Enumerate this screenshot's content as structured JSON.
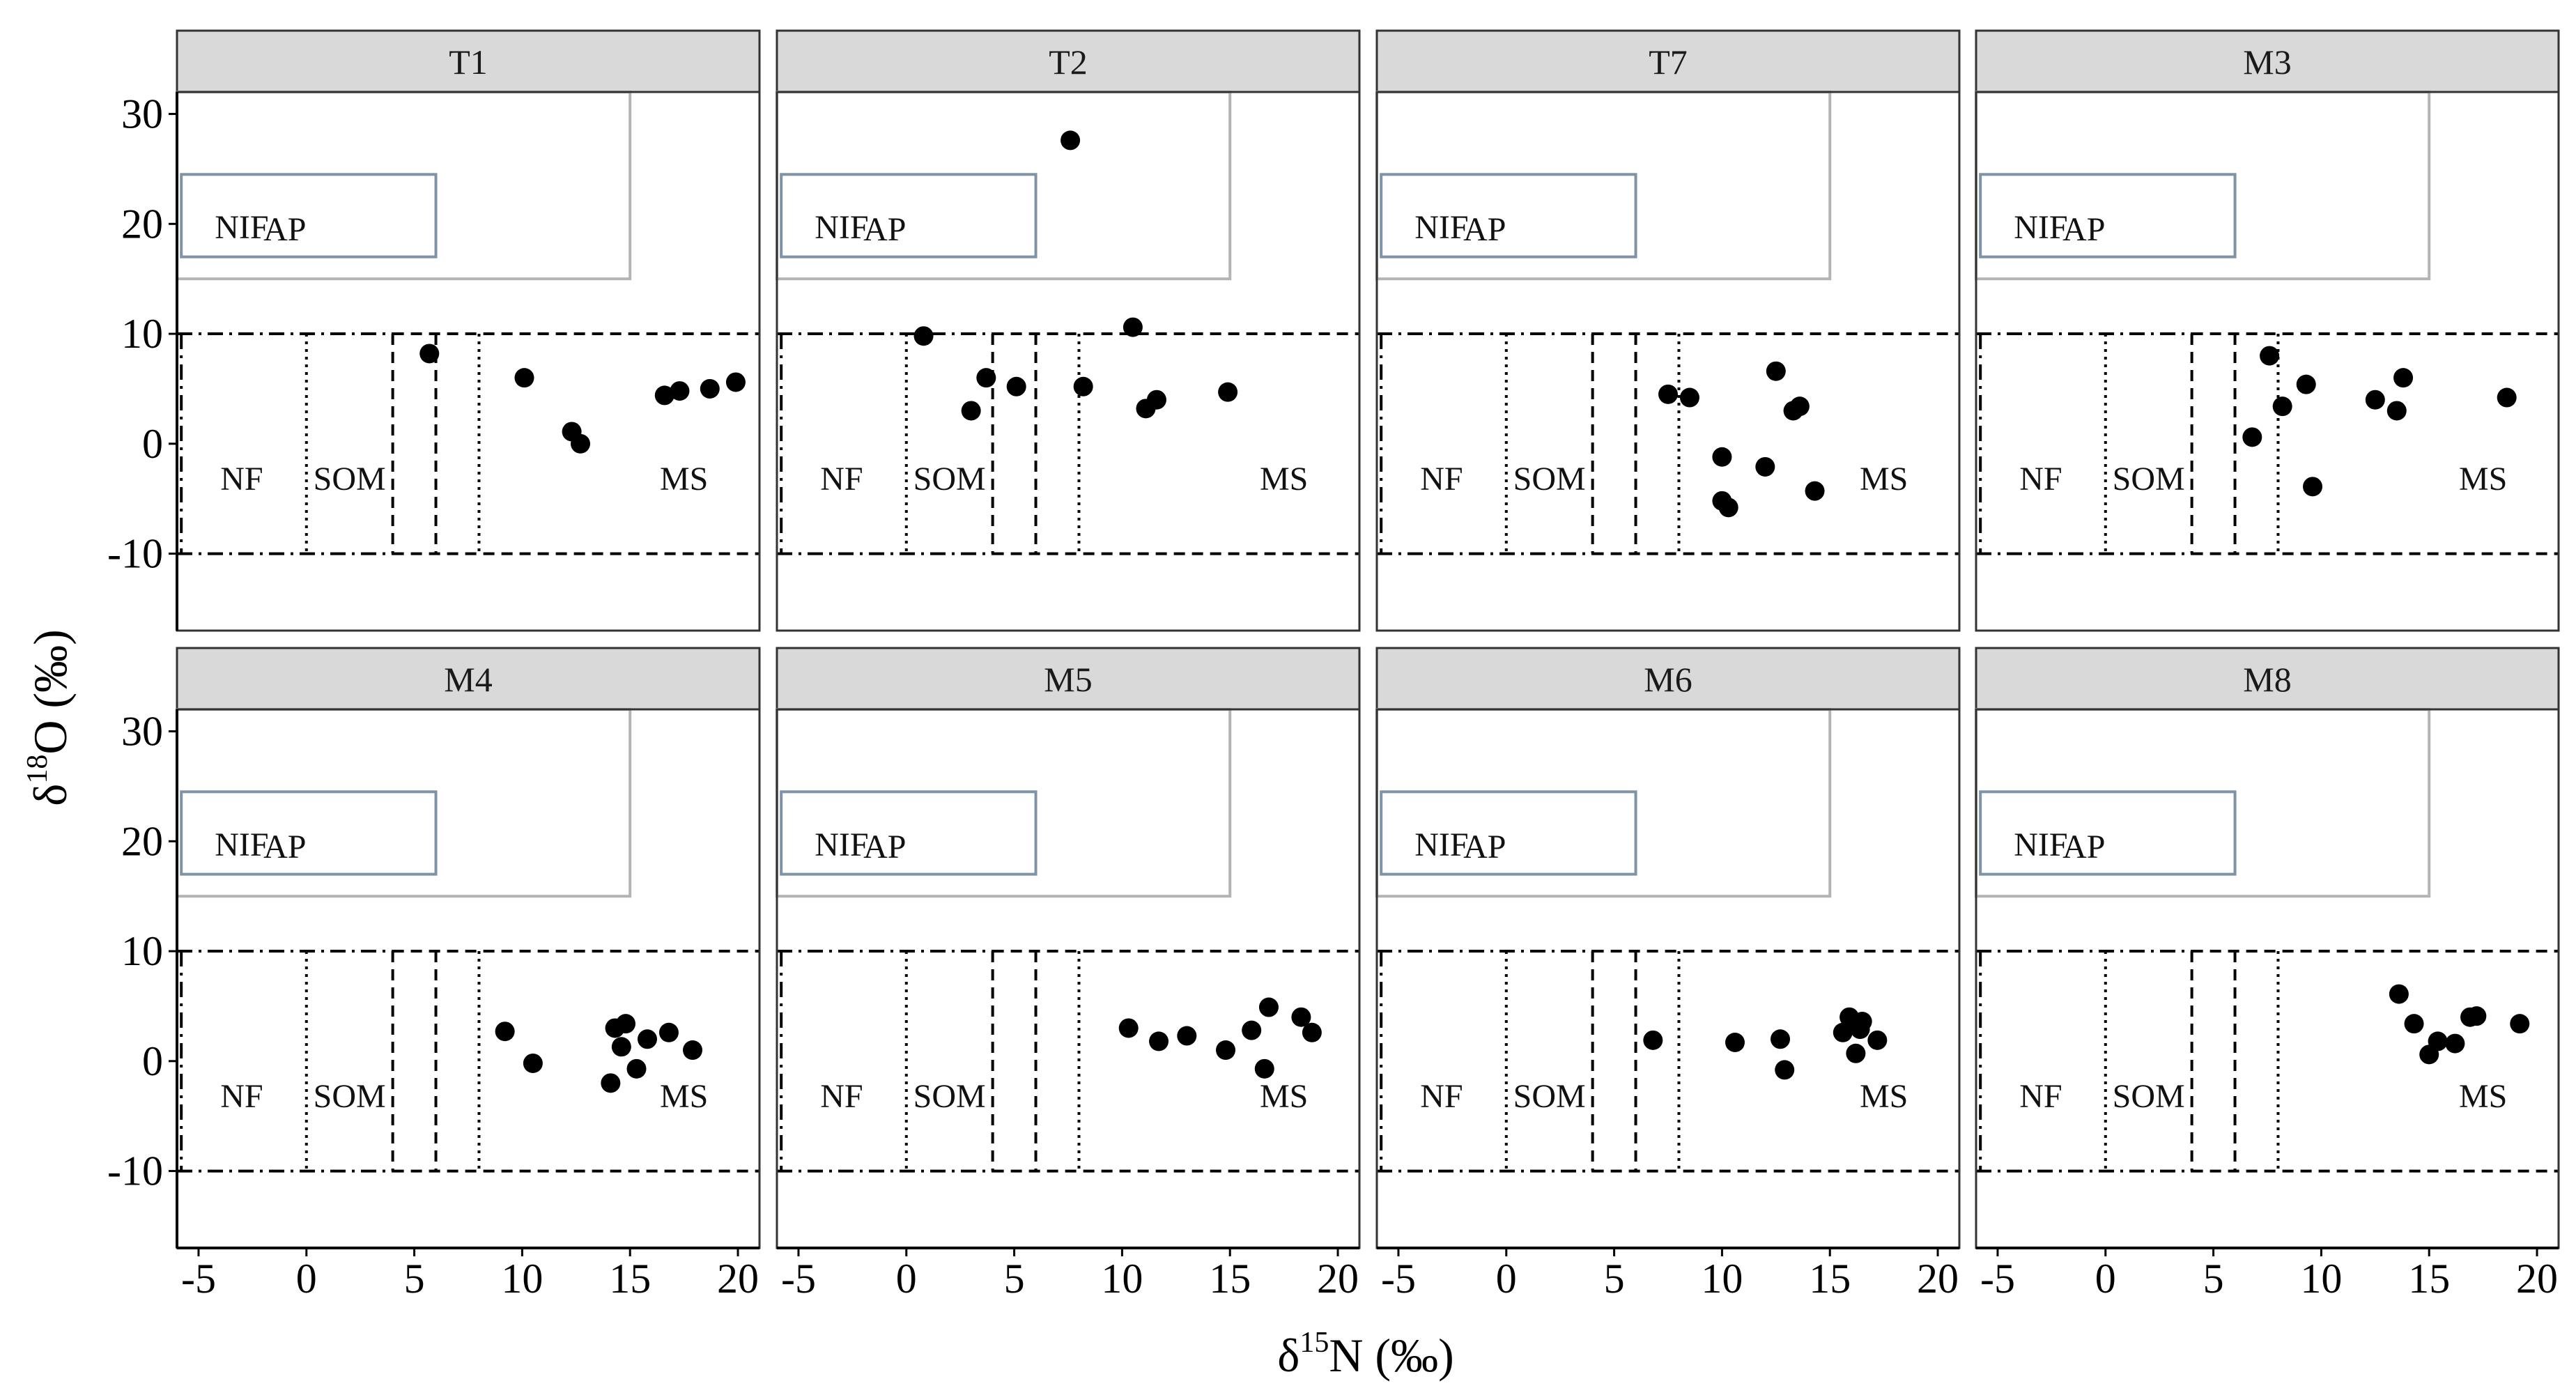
{
  "figure": {
    "ylabel": "δ18O (‰)",
    "xlabel": "δ15N (‰)"
  },
  "chart_data": [
    {
      "type": "scatter",
      "title": "T1",
      "xlim": [
        -6,
        21
      ],
      "ylim": [
        -17,
        32
      ],
      "xticks": [
        -5,
        0,
        5,
        10,
        15,
        20
      ],
      "yticks": [
        -10,
        0,
        10,
        20,
        30
      ],
      "points": [
        [
          5.7,
          8.2
        ],
        [
          10.1,
          6.0
        ],
        [
          12.3,
          1.1
        ],
        [
          12.7,
          0.0
        ],
        [
          16.6,
          4.4
        ],
        [
          17.3,
          4.8
        ],
        [
          18.7,
          5.0
        ],
        [
          19.9,
          5.6
        ]
      ]
    },
    {
      "type": "scatter",
      "title": "T2",
      "xlim": [
        -6,
        21
      ],
      "ylim": [
        -17,
        32
      ],
      "xticks": [
        -5,
        0,
        5,
        10,
        15,
        20
      ],
      "yticks": [
        -10,
        0,
        10,
        20,
        30
      ],
      "points": [
        [
          7.6,
          27.6
        ],
        [
          0.8,
          9.8
        ],
        [
          3.0,
          3.0
        ],
        [
          3.7,
          6.0
        ],
        [
          5.1,
          5.2
        ],
        [
          8.2,
          5.2
        ],
        [
          10.5,
          10.6
        ],
        [
          11.1,
          3.2
        ],
        [
          11.6,
          4.0
        ],
        [
          14.9,
          4.7
        ]
      ]
    },
    {
      "type": "scatter",
      "title": "T7",
      "xlim": [
        -6,
        21
      ],
      "ylim": [
        -17,
        32
      ],
      "xticks": [
        -5,
        0,
        5,
        10,
        15,
        20
      ],
      "yticks": [
        -10,
        0,
        10,
        20,
        30
      ],
      "points": [
        [
          7.5,
          4.5
        ],
        [
          8.5,
          4.2
        ],
        [
          10.0,
          -1.2
        ],
        [
          10.0,
          -5.2
        ],
        [
          10.3,
          -5.8
        ],
        [
          12.0,
          -2.1
        ],
        [
          12.5,
          6.6
        ],
        [
          13.3,
          3.0
        ],
        [
          13.6,
          3.4
        ],
        [
          14.3,
          -4.3
        ]
      ]
    },
    {
      "type": "scatter",
      "title": "M3",
      "xlim": [
        -6,
        21
      ],
      "ylim": [
        -17,
        32
      ],
      "xticks": [
        -5,
        0,
        5,
        10,
        15,
        20
      ],
      "yticks": [
        -10,
        0,
        10,
        20,
        30
      ],
      "points": [
        [
          6.8,
          0.6
        ],
        [
          7.6,
          8.0
        ],
        [
          8.2,
          3.4
        ],
        [
          9.3,
          5.4
        ],
        [
          9.6,
          -3.9
        ],
        [
          12.5,
          4.0
        ],
        [
          13.5,
          3.0
        ],
        [
          13.8,
          6.0
        ],
        [
          18.6,
          4.2
        ]
      ]
    },
    {
      "type": "scatter",
      "title": "M4",
      "xlim": [
        -6,
        21
      ],
      "ylim": [
        -17,
        32
      ],
      "xticks": [
        -5,
        0,
        5,
        10,
        15,
        20
      ],
      "yticks": [
        -10,
        0,
        10,
        20,
        30
      ],
      "points": [
        [
          9.2,
          2.7
        ],
        [
          10.5,
          -0.2
        ],
        [
          14.1,
          -2.0
        ],
        [
          14.3,
          3.0
        ],
        [
          14.6,
          1.3
        ],
        [
          14.8,
          3.4
        ],
        [
          15.3,
          -0.7
        ],
        [
          15.8,
          2.0
        ],
        [
          16.8,
          2.6
        ],
        [
          17.9,
          1.0
        ]
      ]
    },
    {
      "type": "scatter",
      "title": "M5",
      "xlim": [
        -6,
        21
      ],
      "ylim": [
        -17,
        32
      ],
      "xticks": [
        -5,
        0,
        5,
        10,
        15,
        20
      ],
      "yticks": [
        -10,
        0,
        10,
        20,
        30
      ],
      "points": [
        [
          10.3,
          3.0
        ],
        [
          11.7,
          1.8
        ],
        [
          13.0,
          2.3
        ],
        [
          14.8,
          1.0
        ],
        [
          16.0,
          2.8
        ],
        [
          16.6,
          -0.7
        ],
        [
          16.8,
          4.9
        ],
        [
          18.3,
          4.0
        ],
        [
          18.8,
          2.6
        ]
      ]
    },
    {
      "type": "scatter",
      "title": "M6",
      "xlim": [
        -6,
        21
      ],
      "ylim": [
        -17,
        32
      ],
      "xticks": [
        -5,
        0,
        5,
        10,
        15,
        20
      ],
      "yticks": [
        -10,
        0,
        10,
        20,
        30
      ],
      "points": [
        [
          6.8,
          1.9
        ],
        [
          10.6,
          1.7
        ],
        [
          12.7,
          2.0
        ],
        [
          12.9,
          -0.8
        ],
        [
          15.6,
          2.6
        ],
        [
          15.9,
          4.0
        ],
        [
          16.2,
          0.7
        ],
        [
          16.4,
          2.9
        ],
        [
          16.5,
          3.6
        ],
        [
          17.2,
          1.9
        ]
      ]
    },
    {
      "type": "scatter",
      "title": "M8",
      "xlim": [
        -6,
        21
      ],
      "ylim": [
        -17,
        32
      ],
      "xticks": [
        -5,
        0,
        5,
        10,
        15,
        20
      ],
      "yticks": [
        -10,
        0,
        10,
        20,
        30
      ],
      "points": [
        [
          13.6,
          6.1
        ],
        [
          14.3,
          3.4
        ],
        [
          15.0,
          0.6
        ],
        [
          15.4,
          1.8
        ],
        [
          16.2,
          1.6
        ],
        [
          16.9,
          4.0
        ],
        [
          17.2,
          4.1
        ],
        [
          19.2,
          3.4
        ]
      ]
    }
  ],
  "regions": {
    "AP": {
      "label": "AP",
      "x": [
        -6,
        15
      ],
      "y": [
        15,
        32
      ],
      "color": "#b4b4b4"
    },
    "NIF": {
      "label": "NIF",
      "x": [
        -5.8,
        6
      ],
      "y": [
        17,
        24.5
      ],
      "color": "#7f93a6"
    },
    "NF": {
      "label": "NF",
      "x": [
        -6,
        0
      ],
      "y": [
        -10,
        10
      ]
    },
    "SOM": {
      "label": "SOM",
      "x": [
        0,
        8
      ],
      "y": [
        -10,
        10
      ]
    },
    "NH4": {
      "x": [
        4,
        6
      ],
      "y": [
        -10,
        10
      ]
    },
    "MS": {
      "label": "MS",
      "y": [
        -10,
        10
      ]
    }
  }
}
